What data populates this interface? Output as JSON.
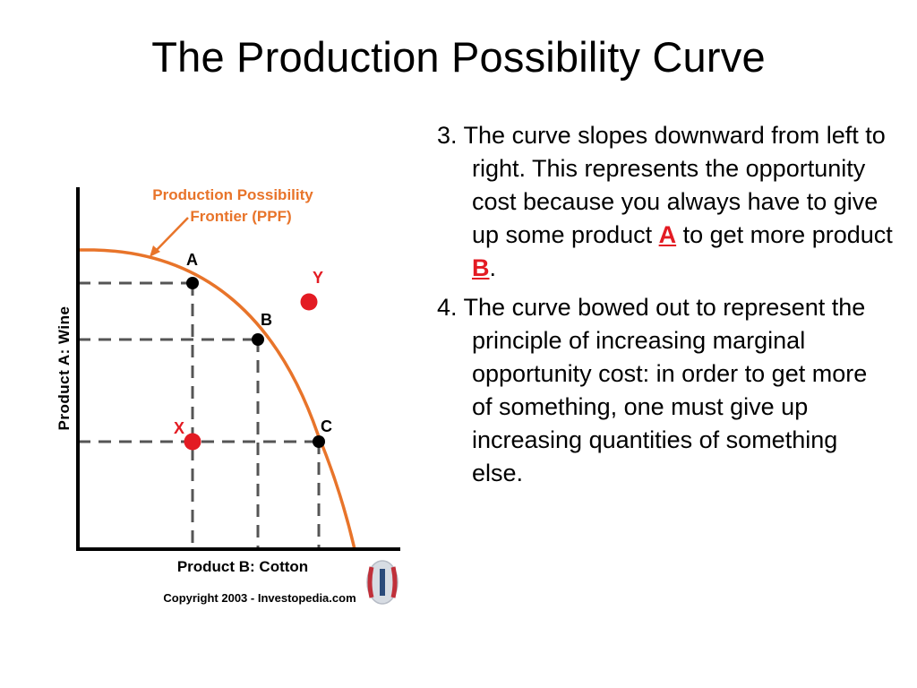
{
  "slide": {
    "title": "The Production Possibility Curve"
  },
  "figure": {
    "ppf_label_line1": "Production Possibility",
    "ppf_label_line2": "Frontier (PPF)",
    "y_axis_label": "Product A:  Wine",
    "x_axis_label": "Product B: Cotton",
    "copyright": "Copyright 2003 - Investopedia.com",
    "points": {
      "a": "A",
      "b": "B",
      "c": "C",
      "x": "X",
      "y": "Y"
    },
    "colors": {
      "curve": "#e8742a",
      "ppf_label": "#e8742a",
      "point_on_curve": "#000000",
      "point_off_curve": "#e31b23",
      "axis": "#000000",
      "dashes": "#555555"
    },
    "logo_icon": "investopedia-logo-icon"
  },
  "bullets": [
    {
      "number": "3.",
      "text_before_a": "The curve slopes downward from left to right. This represents the opportunity cost because you always have to give up some product ",
      "highlight_a": "A",
      "text_between": " to get more product ",
      "highlight_b": "B",
      "text_end": "."
    },
    {
      "number": "4.",
      "text": "The curve bowed out to represent the principle of increasing marginal opportunity cost: in order to get more of something, one must give up increasing quantities of something else."
    }
  ]
}
